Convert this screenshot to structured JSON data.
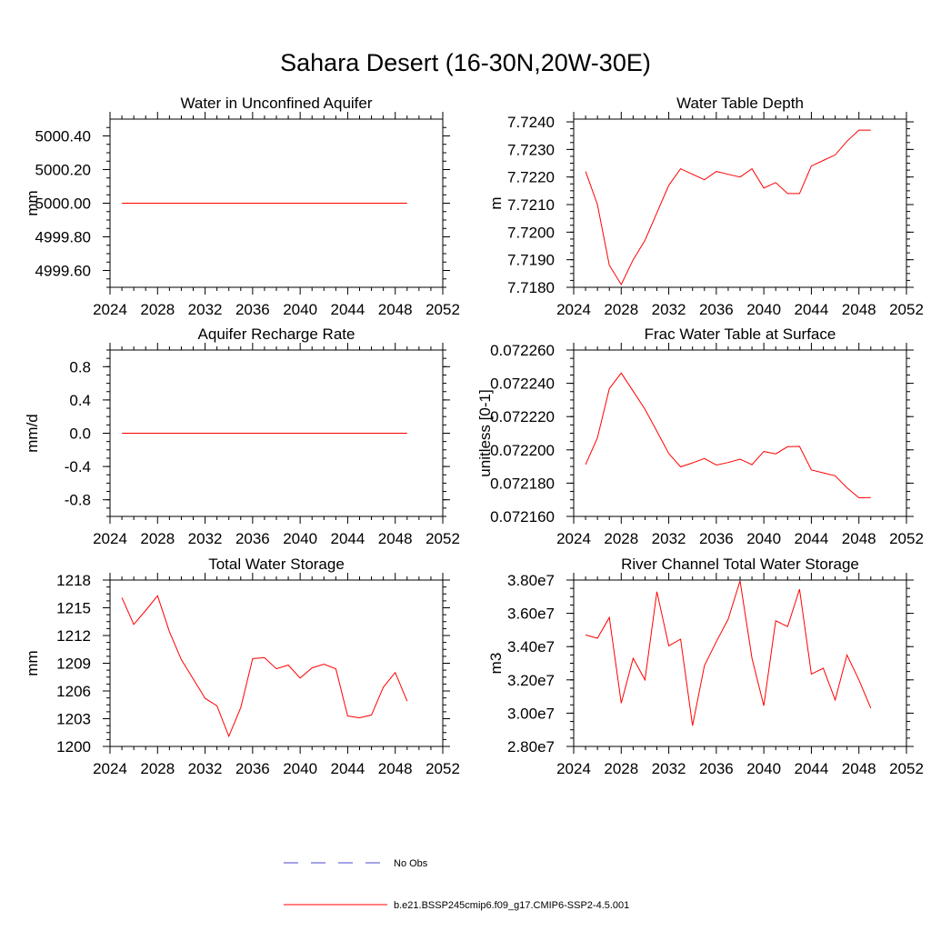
{
  "title": "Sahara Desert (16-30N,20W-30E)",
  "colors": {
    "series": "#ff0000",
    "obs": "#4a4ad0",
    "axis": "#000000"
  },
  "legend": {
    "obs_label": "No Obs",
    "model_label": "b.e21.BSSP245cmip6.f09_g17.CMIP6-SSP2-4.5.001"
  },
  "chart_data": [
    {
      "type": "line",
      "title": "Water in Unconfined Aquifer",
      "xlabel": "",
      "ylabel": "mm",
      "xlim": [
        2024,
        2052
      ],
      "xticks": [
        "2024",
        "2028",
        "2032",
        "2036",
        "2040",
        "2044",
        "2048",
        "2052"
      ],
      "ylim": [
        4999.5,
        5000.5
      ],
      "yticks": [
        "4999.60",
        "4999.80",
        "5000.00",
        "5000.20",
        "5000.40"
      ],
      "x": [
        2025,
        2026,
        2027,
        2028,
        2029,
        2030,
        2031,
        2032,
        2033,
        2034,
        2035,
        2036,
        2037,
        2038,
        2039,
        2040,
        2041,
        2042,
        2043,
        2044,
        2045,
        2046,
        2047,
        2048,
        2049
      ],
      "series": [
        {
          "values": [
            5000,
            5000,
            5000,
            5000,
            5000,
            5000,
            5000,
            5000,
            5000,
            5000,
            5000,
            5000,
            5000,
            5000,
            5000,
            5000,
            5000,
            5000,
            5000,
            5000,
            5000,
            5000,
            5000,
            5000,
            5000
          ]
        }
      ]
    },
    {
      "type": "line",
      "title": "Water Table Depth",
      "xlabel": "",
      "ylabel": "m",
      "xlim": [
        2024,
        2052
      ],
      "xticks": [
        "2024",
        "2028",
        "2032",
        "2036",
        "2040",
        "2044",
        "2048",
        "2052"
      ],
      "ylim": [
        7.718,
        7.7241
      ],
      "yticks": [
        "7.7180",
        "7.7190",
        "7.7200",
        "7.7210",
        "7.7220",
        "7.7230",
        "7.7240"
      ],
      "x": [
        2025,
        2026,
        2027,
        2028,
        2029,
        2030,
        2031,
        2032,
        2033,
        2034,
        2035,
        2036,
        2037,
        2038,
        2039,
        2040,
        2041,
        2042,
        2043,
        2044,
        2045,
        2046,
        2047,
        2048,
        2049
      ],
      "series": [
        {
          "values": [
            7.7222,
            7.721,
            7.7188,
            7.7181,
            7.719,
            7.7197,
            7.7207,
            7.7217,
            7.7223,
            7.7221,
            7.7219,
            7.7222,
            7.7221,
            7.722,
            7.7223,
            7.7216,
            7.7218,
            7.7214,
            7.7214,
            7.7224,
            7.7226,
            7.7228,
            7.7233,
            7.7237,
            7.7237
          ]
        }
      ]
    },
    {
      "type": "line",
      "title": "Aquifer Recharge Rate",
      "xlabel": "",
      "ylabel": "mm/d",
      "xlim": [
        2024,
        2052
      ],
      "xticks": [
        "2024",
        "2028",
        "2032",
        "2036",
        "2040",
        "2044",
        "2048",
        "2052"
      ],
      "ylim": [
        -1.0,
        1.0
      ],
      "yticks": [
        "-0.8",
        "-0.4",
        "0.0",
        "0.4",
        "0.8"
      ],
      "x": [
        2025,
        2026,
        2027,
        2028,
        2029,
        2030,
        2031,
        2032,
        2033,
        2034,
        2035,
        2036,
        2037,
        2038,
        2039,
        2040,
        2041,
        2042,
        2043,
        2044,
        2045,
        2046,
        2047,
        2048,
        2049
      ],
      "series": [
        {
          "values": [
            0,
            0,
            0,
            0,
            0,
            0,
            0,
            0,
            0,
            0,
            0,
            0,
            0,
            0,
            0,
            0,
            0,
            0,
            0,
            0,
            0,
            0,
            0,
            0,
            0
          ]
        }
      ]
    },
    {
      "type": "line",
      "title": "Frac Water Table at Surface",
      "xlabel": "",
      "ylabel": "unitless [0-1]",
      "xlim": [
        2024,
        2052
      ],
      "xticks": [
        "2024",
        "2028",
        "2032",
        "2036",
        "2040",
        "2044",
        "2048",
        "2052"
      ],
      "ylim": [
        0.07216,
        0.07226
      ],
      "yticks": [
        "0.072160",
        "0.072180",
        "0.072200",
        "0.072220",
        "0.072240",
        "0.072260"
      ],
      "x": [
        2025,
        2026,
        2027,
        2028,
        2029,
        2030,
        2031,
        2032,
        2033,
        2034,
        2035,
        2036,
        2037,
        2038,
        2039,
        2040,
        2041,
        2042,
        2043,
        2044,
        2045,
        2046,
        2047,
        2048,
        2049
      ],
      "series": [
        {
          "values": [
            0.0721912,
            0.0722072,
            0.0722368,
            0.0722462,
            0.0722353,
            0.0722244,
            0.0722112,
            0.0721978,
            0.0721898,
            0.0721922,
            0.0721948,
            0.0721909,
            0.0721924,
            0.0721944,
            0.0721911,
            0.072199,
            0.0721976,
            0.0722019,
            0.0722021,
            0.072188,
            0.0721862,
            0.0721844,
            0.0721772,
            0.0721712,
            0.0721713
          ]
        }
      ]
    },
    {
      "type": "line",
      "title": "Total Water Storage",
      "xlabel": "",
      "ylabel": "mm",
      "xlim": [
        2024,
        2052
      ],
      "xticks": [
        "2024",
        "2028",
        "2032",
        "2036",
        "2040",
        "2044",
        "2048",
        "2052"
      ],
      "ylim": [
        1200,
        1218
      ],
      "yticks": [
        "1200",
        "1203",
        "1206",
        "1209",
        "1212",
        "1215",
        "1218"
      ],
      "x": [
        2025,
        2026,
        2027,
        2028,
        2029,
        2030,
        2031,
        2032,
        2033,
        2034,
        2035,
        2036,
        2037,
        2038,
        2039,
        2040,
        2041,
        2042,
        2043,
        2044,
        2045,
        2046,
        2047,
        2048,
        2049
      ],
      "series": [
        {
          "values": [
            1216.1,
            1213.2,
            1214.7,
            1216.3,
            1212.4,
            1209.4,
            1207.3,
            1205.2,
            1204.4,
            1201.1,
            1204.2,
            1209.5,
            1209.6,
            1208.4,
            1208.8,
            1207.4,
            1208.5,
            1208.9,
            1208.4,
            1203.3,
            1203.1,
            1203.4,
            1206.4,
            1208.0,
            1204.9
          ]
        }
      ]
    },
    {
      "type": "line",
      "title": "River Channel Total Water Storage",
      "xlabel": "",
      "ylabel": "m3",
      "xlim": [
        2024,
        2052
      ],
      "xticks": [
        "2024",
        "2028",
        "2032",
        "2036",
        "2040",
        "2044",
        "2048",
        "2052"
      ],
      "ylim": [
        28000000,
        38000000
      ],
      "yticks": [
        "2.80e7",
        "3.00e7",
        "3.20e7",
        "3.40e7",
        "3.60e7",
        "3.80e7"
      ],
      "x": [
        2025,
        2026,
        2027,
        2028,
        2029,
        2030,
        2031,
        2032,
        2033,
        2034,
        2035,
        2036,
        2037,
        2038,
        2039,
        2040,
        2041,
        2042,
        2043,
        2044,
        2045,
        2046,
        2047,
        2048,
        2049
      ],
      "series": [
        {
          "values": [
            34700000,
            34500000,
            35750000,
            30600000,
            33300000,
            32000000,
            37300000,
            34050000,
            34450000,
            29250000,
            32850000,
            34300000,
            35650000,
            37950000,
            33300000,
            30450000,
            35550000,
            35200000,
            37450000,
            32350000,
            32700000,
            30800000,
            33500000,
            32000000,
            30300000
          ]
        }
      ]
    }
  ]
}
